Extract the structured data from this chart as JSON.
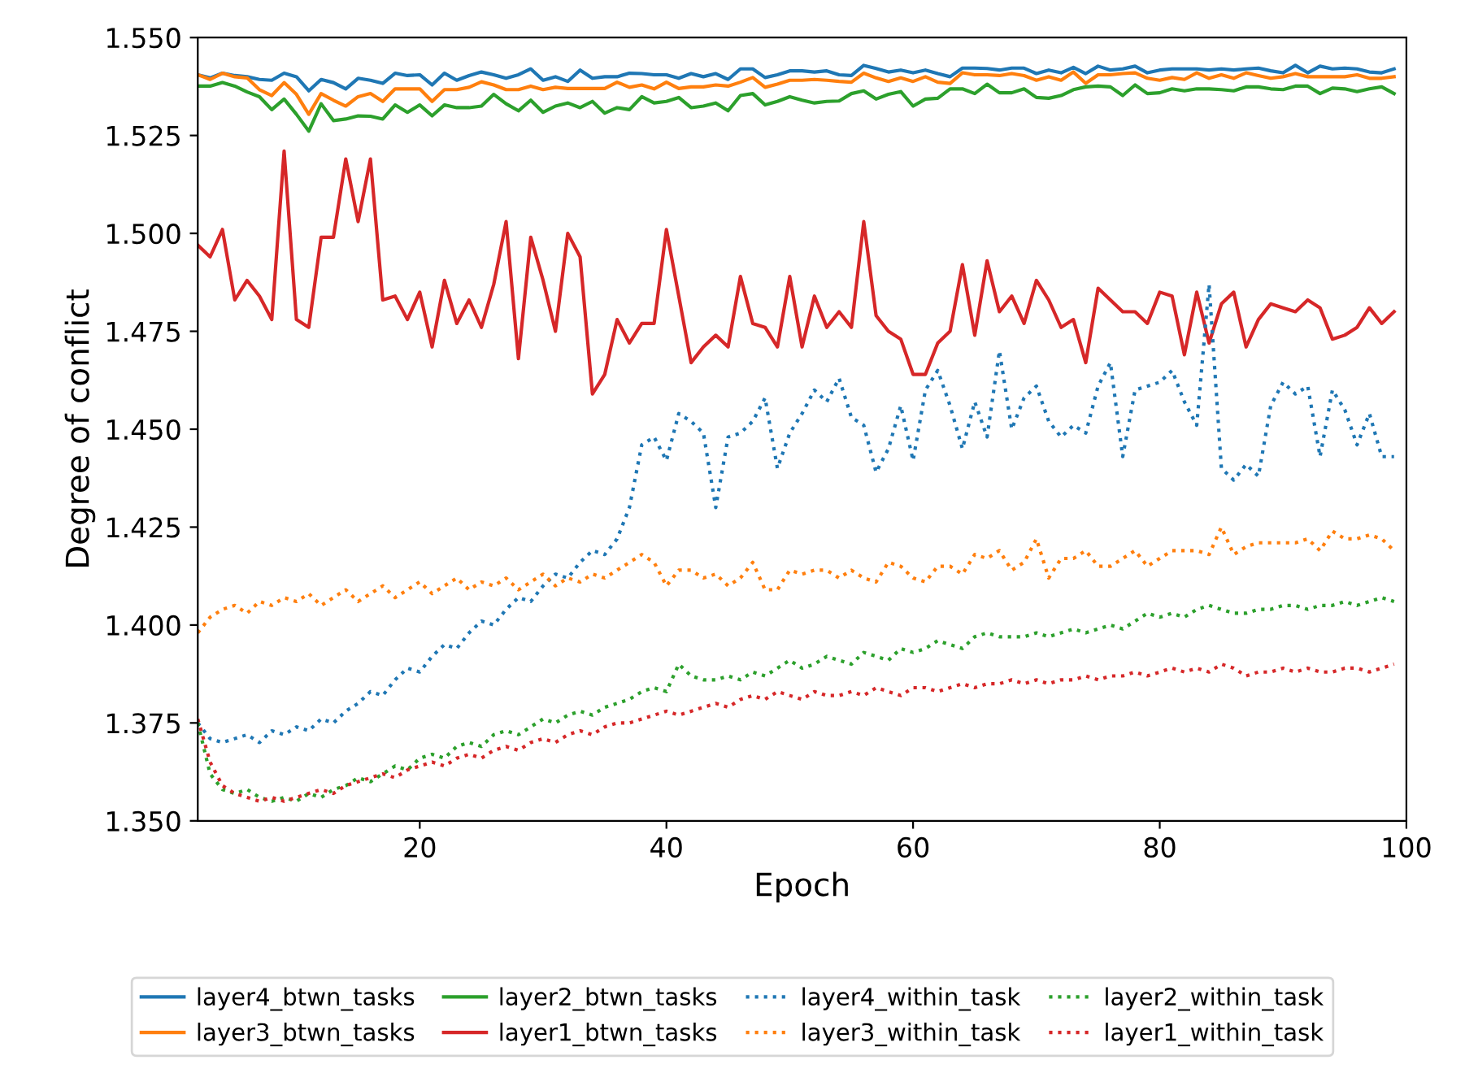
{
  "chart_data": {
    "type": "line",
    "xlabel": "Epoch",
    "ylabel": "Degree of conflict",
    "x": [
      2,
      3,
      4,
      5,
      6,
      7,
      8,
      9,
      10,
      11,
      12,
      13,
      14,
      15,
      16,
      17,
      18,
      19,
      20,
      21,
      22,
      23,
      24,
      25,
      26,
      27,
      28,
      29,
      30,
      31,
      32,
      33,
      34,
      35,
      36,
      37,
      38,
      39,
      40,
      41,
      42,
      43,
      44,
      45,
      46,
      47,
      48,
      49,
      50,
      51,
      52,
      53,
      54,
      55,
      56,
      57,
      58,
      59,
      60,
      61,
      62,
      63,
      64,
      65,
      66,
      67,
      68,
      69,
      70,
      71,
      72,
      73,
      74,
      75,
      76,
      77,
      78,
      79,
      80,
      81,
      82,
      83,
      84,
      85,
      86,
      87,
      88,
      89,
      90,
      91,
      92,
      93,
      94,
      95,
      96,
      97,
      98,
      99
    ],
    "xlim": [
      2,
      100
    ],
    "xticks": [
      20,
      40,
      60,
      80,
      100
    ],
    "ylim": [
      1.35,
      1.55
    ],
    "yticks": [
      {
        "value": 1.35,
        "label": "1.350"
      },
      {
        "value": 1.375,
        "label": "1.375"
      },
      {
        "value": 1.4,
        "label": "1.400"
      },
      {
        "value": 1.425,
        "label": "1.425"
      },
      {
        "value": 1.45,
        "label": "1.450"
      },
      {
        "value": 1.475,
        "label": "1.475"
      },
      {
        "value": 1.5,
        "label": "1.500"
      },
      {
        "value": 1.525,
        "label": "1.525"
      },
      {
        "value": 1.55,
        "label": "1.550"
      }
    ],
    "grid": false,
    "legend": "bottom",
    "series": [
      {
        "name": "layer4_btwn_tasks",
        "color": "#1f77b4",
        "line_style": "solid",
        "values": [
          1.5405,
          1.5397,
          1.5409,
          1.5403,
          1.54,
          1.5393,
          1.5391,
          1.5409,
          1.54,
          1.5364,
          1.5393,
          1.5385,
          1.5369,
          1.5396,
          1.5391,
          1.5383,
          1.5409,
          1.5403,
          1.5405,
          1.5379,
          1.5409,
          1.5391,
          1.5403,
          1.5412,
          1.5405,
          1.5396,
          1.5405,
          1.542,
          1.5391,
          1.54,
          1.5388,
          1.5417,
          1.5396,
          1.54,
          1.54,
          1.5409,
          1.5408,
          1.5405,
          1.5405,
          1.5396,
          1.5408,
          1.54,
          1.5408,
          1.5393,
          1.542,
          1.542,
          1.5398,
          1.5405,
          1.5415,
          1.5415,
          1.5412,
          1.5415,
          1.5405,
          1.5403,
          1.5429,
          1.5421,
          1.5412,
          1.5417,
          1.541,
          1.5417,
          1.5408,
          1.54,
          1.5422,
          1.5422,
          1.5421,
          1.5417,
          1.5422,
          1.5422,
          1.5408,
          1.5417,
          1.541,
          1.5424,
          1.5408,
          1.5427,
          1.5417,
          1.542,
          1.5427,
          1.541,
          1.5417,
          1.542,
          1.542,
          1.542,
          1.5417,
          1.542,
          1.5417,
          1.542,
          1.5422,
          1.5415,
          1.541,
          1.5429,
          1.541,
          1.5427,
          1.542,
          1.5422,
          1.542,
          1.5412,
          1.541,
          1.542
        ]
      },
      {
        "name": "layer3_btwn_tasks",
        "color": "#ff7f0e",
        "line_style": "solid",
        "values": [
          1.5405,
          1.5393,
          1.5409,
          1.54,
          1.5397,
          1.5367,
          1.5352,
          1.5385,
          1.5355,
          1.5304,
          1.5357,
          1.534,
          1.5325,
          1.5349,
          1.5357,
          1.5337,
          1.5369,
          1.5369,
          1.5369,
          1.5337,
          1.5367,
          1.5367,
          1.5373,
          1.5387,
          1.5379,
          1.5367,
          1.5367,
          1.5376,
          1.5367,
          1.5373,
          1.537,
          1.537,
          1.537,
          1.537,
          1.5386,
          1.5373,
          1.5379,
          1.5369,
          1.5386,
          1.537,
          1.5374,
          1.5374,
          1.5379,
          1.5376,
          1.5386,
          1.5398,
          1.5373,
          1.5381,
          1.5391,
          1.5391,
          1.5393,
          1.5391,
          1.5388,
          1.5386,
          1.5409,
          1.5397,
          1.5388,
          1.5397,
          1.5388,
          1.54,
          1.5386,
          1.5383,
          1.541,
          1.5405,
          1.5405,
          1.5403,
          1.5408,
          1.5403,
          1.5391,
          1.54,
          1.5391,
          1.5412,
          1.5383,
          1.5405,
          1.5405,
          1.5408,
          1.541,
          1.5396,
          1.5391,
          1.5398,
          1.5393,
          1.541,
          1.5396,
          1.5405,
          1.5396,
          1.541,
          1.5403,
          1.5396,
          1.54,
          1.5408,
          1.54,
          1.54,
          1.54,
          1.54,
          1.5405,
          1.5396,
          1.5396,
          1.54
        ]
      },
      {
        "name": "layer2_btwn_tasks",
        "color": "#2ca02c",
        "line_style": "solid",
        "values": [
          1.5376,
          1.5376,
          1.5385,
          1.5376,
          1.5361,
          1.5349,
          1.5316,
          1.5343,
          1.5304,
          1.5261,
          1.5331,
          1.5288,
          1.5292,
          1.53,
          1.5299,
          1.5292,
          1.5328,
          1.5309,
          1.5328,
          1.53,
          1.5328,
          1.5321,
          1.5321,
          1.5325,
          1.5355,
          1.5331,
          1.5313,
          1.534,
          1.5309,
          1.5325,
          1.5333,
          1.5321,
          1.5337,
          1.5307,
          1.5321,
          1.5316,
          1.5349,
          1.5333,
          1.5337,
          1.5347,
          1.5321,
          1.5325,
          1.5333,
          1.5313,
          1.5352,
          1.5357,
          1.5328,
          1.5337,
          1.5349,
          1.534,
          1.5333,
          1.5337,
          1.5338,
          1.5357,
          1.5364,
          1.5343,
          1.5355,
          1.5362,
          1.5325,
          1.5343,
          1.5345,
          1.5369,
          1.5369,
          1.5357,
          1.5381,
          1.5359,
          1.5359,
          1.5369,
          1.5347,
          1.5345,
          1.5352,
          1.5367,
          1.5374,
          1.5376,
          1.5374,
          1.5352,
          1.5379,
          1.5357,
          1.5359,
          1.5369,
          1.5364,
          1.5369,
          1.5369,
          1.5367,
          1.5364,
          1.5374,
          1.5374,
          1.5369,
          1.5367,
          1.5376,
          1.5376,
          1.5357,
          1.5371,
          1.5369,
          1.5362,
          1.5369,
          1.5374,
          1.5357
        ]
      },
      {
        "name": "layer1_btwn_tasks",
        "color": "#d62728",
        "line_style": "solid",
        "values": [
          1.497,
          1.494,
          1.501,
          1.483,
          1.488,
          1.484,
          1.478,
          1.521,
          1.478,
          1.476,
          1.499,
          1.499,
          1.519,
          1.503,
          1.519,
          1.483,
          1.484,
          1.478,
          1.485,
          1.471,
          1.488,
          1.477,
          1.483,
          1.476,
          1.487,
          1.503,
          1.468,
          1.499,
          1.488,
          1.475,
          1.5,
          1.494,
          1.459,
          1.464,
          1.478,
          1.472,
          1.477,
          1.477,
          1.501,
          1.484,
          1.467,
          1.471,
          1.474,
          1.471,
          1.489,
          1.477,
          1.476,
          1.471,
          1.489,
          1.471,
          1.484,
          1.476,
          1.48,
          1.476,
          1.503,
          1.479,
          1.475,
          1.473,
          1.464,
          1.464,
          1.472,
          1.475,
          1.492,
          1.474,
          1.493,
          1.48,
          1.484,
          1.477,
          1.488,
          1.483,
          1.476,
          1.478,
          1.467,
          1.486,
          1.483,
          1.48,
          1.48,
          1.477,
          1.485,
          1.484,
          1.469,
          1.485,
          1.472,
          1.482,
          1.485,
          1.471,
          1.478,
          1.482,
          1.481,
          1.48,
          1.483,
          1.481,
          1.473,
          1.474,
          1.476,
          1.481,
          1.477,
          1.48
        ]
      },
      {
        "name": "layer4_within_task",
        "color": "#1f77b4",
        "line_style": "dotted",
        "values": [
          1.375,
          1.371,
          1.37,
          1.371,
          1.372,
          1.37,
          1.373,
          1.372,
          1.374,
          1.373,
          1.376,
          1.375,
          1.378,
          1.38,
          1.383,
          1.382,
          1.386,
          1.389,
          1.388,
          1.392,
          1.395,
          1.394,
          1.398,
          1.401,
          1.4,
          1.404,
          1.407,
          1.406,
          1.41,
          1.413,
          1.412,
          1.416,
          1.419,
          1.418,
          1.422,
          1.43,
          1.446,
          1.448,
          1.442,
          1.454,
          1.452,
          1.449,
          1.43,
          1.448,
          1.449,
          1.452,
          1.458,
          1.44,
          1.449,
          1.454,
          1.46,
          1.457,
          1.463,
          1.453,
          1.451,
          1.439,
          1.445,
          1.456,
          1.442,
          1.46,
          1.465,
          1.456,
          1.445,
          1.457,
          1.448,
          1.47,
          1.45,
          1.458,
          1.461,
          1.452,
          1.448,
          1.451,
          1.449,
          1.461,
          1.467,
          1.443,
          1.46,
          1.461,
          1.462,
          1.465,
          1.457,
          1.451,
          1.487,
          1.44,
          1.437,
          1.441,
          1.438,
          1.456,
          1.462,
          1.459,
          1.461,
          1.443,
          1.46,
          1.455,
          1.446,
          1.454,
          1.443,
          1.443
        ]
      },
      {
        "name": "layer3_within_task",
        "color": "#ff7f0e",
        "line_style": "dotted",
        "values": [
          1.398,
          1.402,
          1.404,
          1.405,
          1.403,
          1.406,
          1.405,
          1.407,
          1.406,
          1.408,
          1.405,
          1.407,
          1.409,
          1.406,
          1.408,
          1.41,
          1.407,
          1.409,
          1.411,
          1.408,
          1.41,
          1.412,
          1.409,
          1.411,
          1.41,
          1.412,
          1.409,
          1.411,
          1.413,
          1.41,
          1.412,
          1.411,
          1.413,
          1.412,
          1.414,
          1.416,
          1.418,
          1.416,
          1.41,
          1.414,
          1.414,
          1.412,
          1.413,
          1.41,
          1.412,
          1.416,
          1.409,
          1.409,
          1.414,
          1.413,
          1.414,
          1.414,
          1.412,
          1.414,
          1.412,
          1.411,
          1.416,
          1.415,
          1.412,
          1.411,
          1.415,
          1.415,
          1.413,
          1.418,
          1.417,
          1.419,
          1.414,
          1.416,
          1.422,
          1.412,
          1.417,
          1.417,
          1.419,
          1.415,
          1.415,
          1.417,
          1.419,
          1.415,
          1.417,
          1.419,
          1.419,
          1.419,
          1.418,
          1.425,
          1.418,
          1.42,
          1.421,
          1.421,
          1.421,
          1.421,
          1.422,
          1.419,
          1.424,
          1.422,
          1.422,
          1.423,
          1.422,
          1.419
        ]
      },
      {
        "name": "layer2_within_task",
        "color": "#2ca02c",
        "line_style": "dotted",
        "values": [
          1.375,
          1.362,
          1.358,
          1.357,
          1.358,
          1.356,
          1.355,
          1.356,
          1.355,
          1.357,
          1.356,
          1.358,
          1.359,
          1.361,
          1.36,
          1.362,
          1.364,
          1.363,
          1.366,
          1.367,
          1.366,
          1.369,
          1.37,
          1.369,
          1.372,
          1.373,
          1.372,
          1.374,
          1.376,
          1.375,
          1.377,
          1.378,
          1.377,
          1.379,
          1.38,
          1.381,
          1.383,
          1.384,
          1.383,
          1.39,
          1.387,
          1.386,
          1.386,
          1.387,
          1.386,
          1.388,
          1.387,
          1.389,
          1.391,
          1.389,
          1.39,
          1.392,
          1.391,
          1.39,
          1.393,
          1.392,
          1.391,
          1.394,
          1.393,
          1.394,
          1.396,
          1.395,
          1.394,
          1.397,
          1.398,
          1.397,
          1.397,
          1.397,
          1.398,
          1.397,
          1.398,
          1.399,
          1.398,
          1.399,
          1.4,
          1.399,
          1.401,
          1.403,
          1.402,
          1.403,
          1.402,
          1.404,
          1.405,
          1.404,
          1.403,
          1.403,
          1.404,
          1.404,
          1.405,
          1.405,
          1.404,
          1.405,
          1.405,
          1.406,
          1.405,
          1.406,
          1.407,
          1.406
        ]
      },
      {
        "name": "layer1_within_task",
        "color": "#d62728",
        "line_style": "dotted",
        "values": [
          1.376,
          1.365,
          1.359,
          1.357,
          1.356,
          1.355,
          1.356,
          1.355,
          1.356,
          1.357,
          1.358,
          1.357,
          1.359,
          1.36,
          1.361,
          1.362,
          1.361,
          1.363,
          1.364,
          1.365,
          1.364,
          1.366,
          1.367,
          1.366,
          1.368,
          1.369,
          1.368,
          1.37,
          1.371,
          1.37,
          1.372,
          1.373,
          1.372,
          1.374,
          1.375,
          1.375,
          1.376,
          1.377,
          1.378,
          1.377,
          1.378,
          1.379,
          1.38,
          1.379,
          1.381,
          1.382,
          1.381,
          1.383,
          1.382,
          1.381,
          1.383,
          1.382,
          1.382,
          1.383,
          1.382,
          1.384,
          1.383,
          1.382,
          1.384,
          1.384,
          1.383,
          1.384,
          1.385,
          1.384,
          1.385,
          1.385,
          1.386,
          1.385,
          1.386,
          1.385,
          1.386,
          1.386,
          1.387,
          1.386,
          1.387,
          1.387,
          1.388,
          1.387,
          1.388,
          1.389,
          1.388,
          1.389,
          1.388,
          1.39,
          1.389,
          1.387,
          1.388,
          1.388,
          1.389,
          1.388,
          1.389,
          1.388,
          1.388,
          1.389,
          1.389,
          1.388,
          1.389,
          1.39
        ]
      }
    ]
  }
}
